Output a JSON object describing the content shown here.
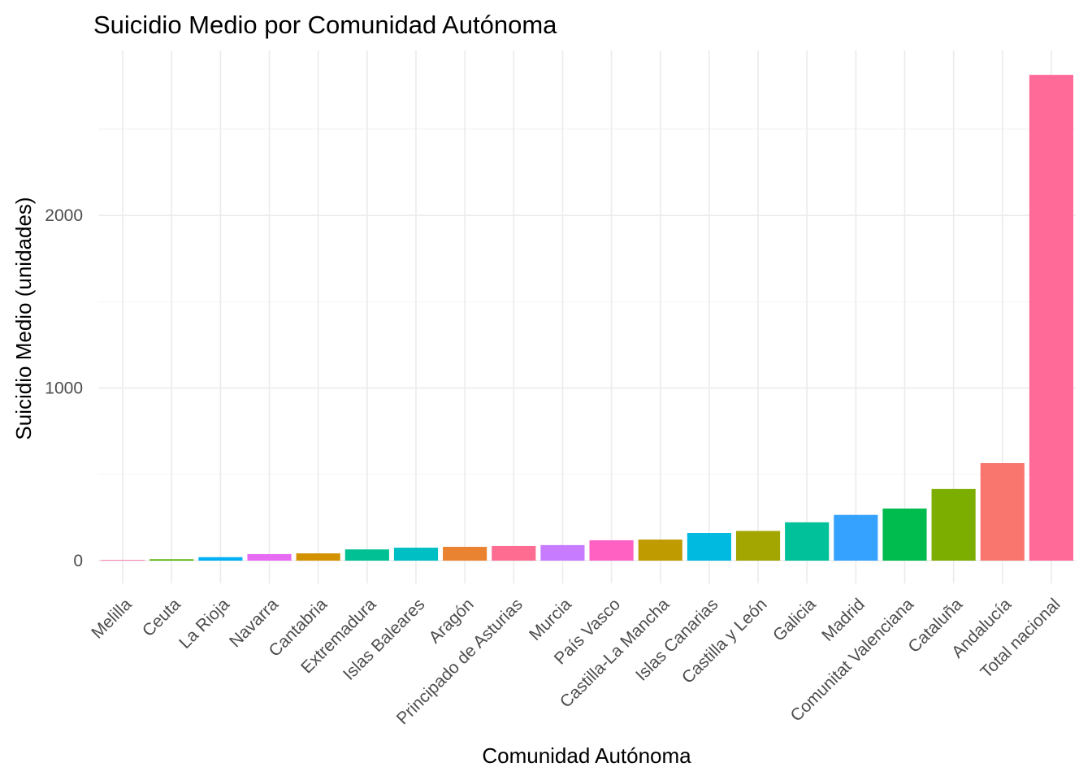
{
  "chart_data": {
    "type": "bar",
    "title": "Suicidio Medio por Comunidad Autónoma",
    "xlabel": "Comunidad Autónoma",
    "ylabel": "Suicidio Medio (unidades)",
    "ylim": [
      -130,
      3000
    ],
    "yticks": [
      0,
      1000,
      2000
    ],
    "ytick_labels": [
      "0",
      "1000",
      "2000"
    ],
    "grid": true,
    "legend": "none",
    "categories": [
      "Melilla",
      "Ceuta",
      "La Rioja",
      "Navarra",
      "Cantabria",
      "Extremadura",
      "Islas Baleares",
      "Aragón",
      "Principado de Asturias",
      "Murcia",
      "País Vasco",
      "Castilla-La Mancha",
      "Islas Canarias",
      "Castilla y León",
      "Galicia",
      "Madrid",
      "Comunitat Valenciana",
      "Cataluña",
      "Andalucía",
      "Total nacional"
    ],
    "values": [
      2,
      8,
      20,
      38,
      42,
      65,
      75,
      80,
      85,
      90,
      118,
      122,
      160,
      172,
      222,
      265,
      302,
      415,
      565,
      2815
    ],
    "colors": [
      "#FF67A4",
      "#53B400",
      "#00B0F6",
      "#E76BF3",
      "#D39200",
      "#00C094",
      "#00BFC4",
      "#EA8331",
      "#FF6C91",
      "#C77CFF",
      "#FF61C3",
      "#C09B00",
      "#00BAE0",
      "#A3A500",
      "#00C19A",
      "#35A2FF",
      "#00BB4E",
      "#7CAE00",
      "#F8766D",
      "#FF6A98"
    ]
  }
}
